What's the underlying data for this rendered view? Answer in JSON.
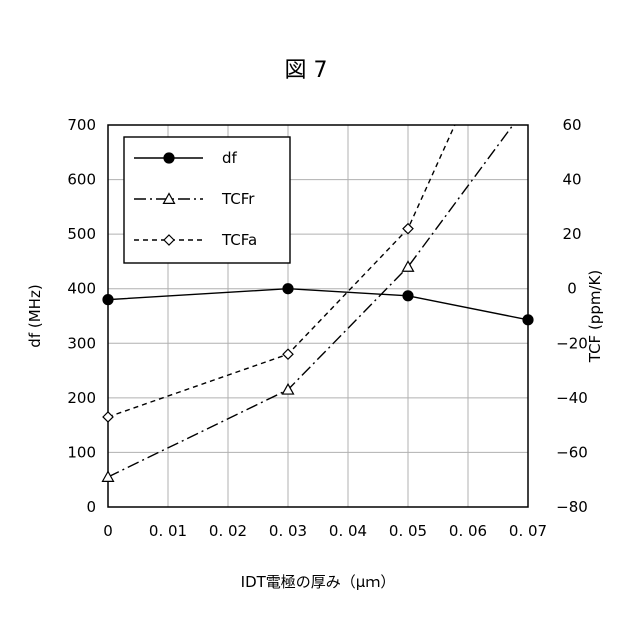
{
  "figure": {
    "title": "図 7"
  },
  "chart_data": {
    "type": "line",
    "title": "図 7",
    "xlabel": "IDT電極の厚み（μｍ）",
    "ylabel_left": "df (MHz)",
    "ylabel_right": "TCF (ppm/K)",
    "xlim": [
      0,
      0.07
    ],
    "ylim_left": [
      0,
      700
    ],
    "ylim_right": [
      -80,
      60
    ],
    "x_ticks": [
      0,
      0.01,
      0.02,
      0.03,
      0.04,
      0.05,
      0.06,
      0.07
    ],
    "x_tick_labels": [
      "0",
      "0. 01",
      "0. 02",
      "0. 03",
      "0. 04",
      "0. 05",
      "0. 06",
      "0. 07"
    ],
    "y_left_ticks": [
      0,
      100,
      200,
      300,
      400,
      500,
      600,
      700
    ],
    "y_left_tick_labels": [
      "0",
      "100",
      "200",
      "300",
      "400",
      "500",
      "600",
      "700"
    ],
    "y_right_ticks": [
      -80,
      -60,
      -40,
      -20,
      0,
      20,
      40,
      60
    ],
    "y_right_tick_labels": [
      "−80",
      "−60",
      "−40",
      "−20",
      "0",
      "20",
      "40",
      "60"
    ],
    "grid": true,
    "legend_position": "top-left",
    "series": [
      {
        "name": "df",
        "axis": "left",
        "line": "solid",
        "marker": "filled-circle",
        "x": [
          0,
          0.03,
          0.05,
          0.07
        ],
        "y": [
          380,
          400,
          387,
          343
        ]
      },
      {
        "name": "TCFr",
        "axis": "right",
        "line": "dash-dot",
        "marker": "open-triangle",
        "x": [
          0,
          0.03,
          0.05,
          0.0675
        ],
        "y": [
          -69,
          -37,
          8,
          60
        ]
      },
      {
        "name": "TCFa",
        "axis": "right",
        "line": "dashed",
        "marker": "open-diamond",
        "x": [
          0,
          0.03,
          0.05,
          0.0578
        ],
        "y": [
          -47,
          -24,
          22,
          60
        ]
      }
    ],
    "markers_at": [
      0,
      0.03,
      0.05,
      0.07
    ],
    "colors": {
      "line": "#000000",
      "grid": "#b0b0b0",
      "background": "#ffffff"
    }
  }
}
